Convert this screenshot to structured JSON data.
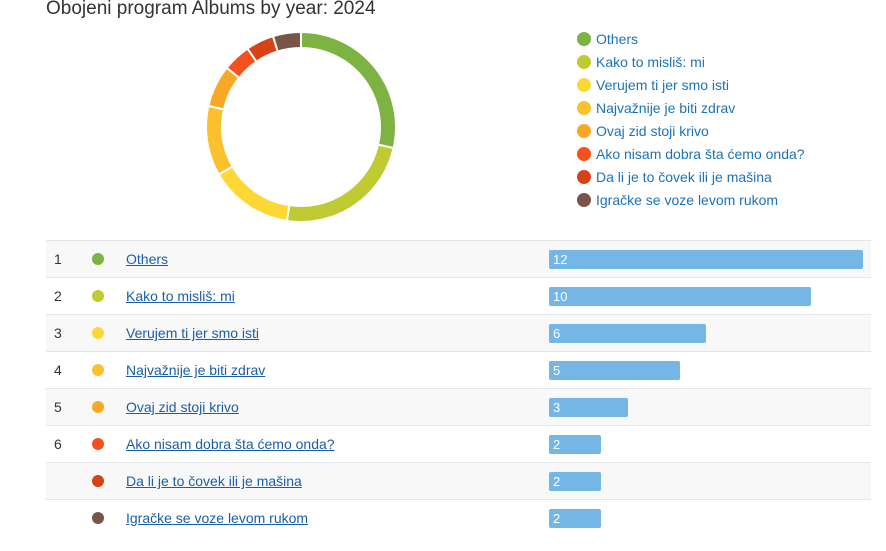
{
  "title": "Obojeni program Albums by year: 2024",
  "chart_data": {
    "type": "pie",
    "variant": "donut",
    "legend_position": "right",
    "categories": [
      "Others",
      "Kako to misliš: mi",
      "Verujem ti jer smo isti",
      "Najvažnije je biti zdrav",
      "Ovaj zid stoji krivo",
      "Ako nisam dobra šta ćemo onda?",
      "Da li je to čovek ili je mašina",
      "Igračke se voze levom rukom"
    ],
    "values": [
      12,
      10,
      6,
      5,
      3,
      2,
      2,
      2
    ],
    "colors": [
      "#7cb342",
      "#c0ca33",
      "#fdd835",
      "#fbc02d",
      "#f9a825",
      "#f4511e",
      "#d84315",
      "#795548"
    ]
  },
  "rows": [
    {
      "rank": "1",
      "name": "Others",
      "value": "12",
      "color": "#7cb342"
    },
    {
      "rank": "2",
      "name": "Kako to misliš: mi",
      "value": "10",
      "color": "#c0ca33"
    },
    {
      "rank": "3",
      "name": "Verujem ti jer smo isti",
      "value": "6",
      "color": "#fdd835"
    },
    {
      "rank": "4",
      "name": "Najvažnije je biti zdrav",
      "value": "5",
      "color": "#fbc02d"
    },
    {
      "rank": "5",
      "name": "Ovaj zid stoji krivo",
      "value": "3",
      "color": "#f9a825"
    },
    {
      "rank": "6",
      "name": "Ako nisam dobra šta ćemo onda?",
      "value": "2",
      "color": "#f4511e"
    },
    {
      "rank": "",
      "name": "Da li je to čovek ili je mašina",
      "value": "2",
      "color": "#d84315"
    },
    {
      "rank": "",
      "name": "Igračke se voze levom rukom",
      "value": "2",
      "color": "#795548"
    }
  ]
}
